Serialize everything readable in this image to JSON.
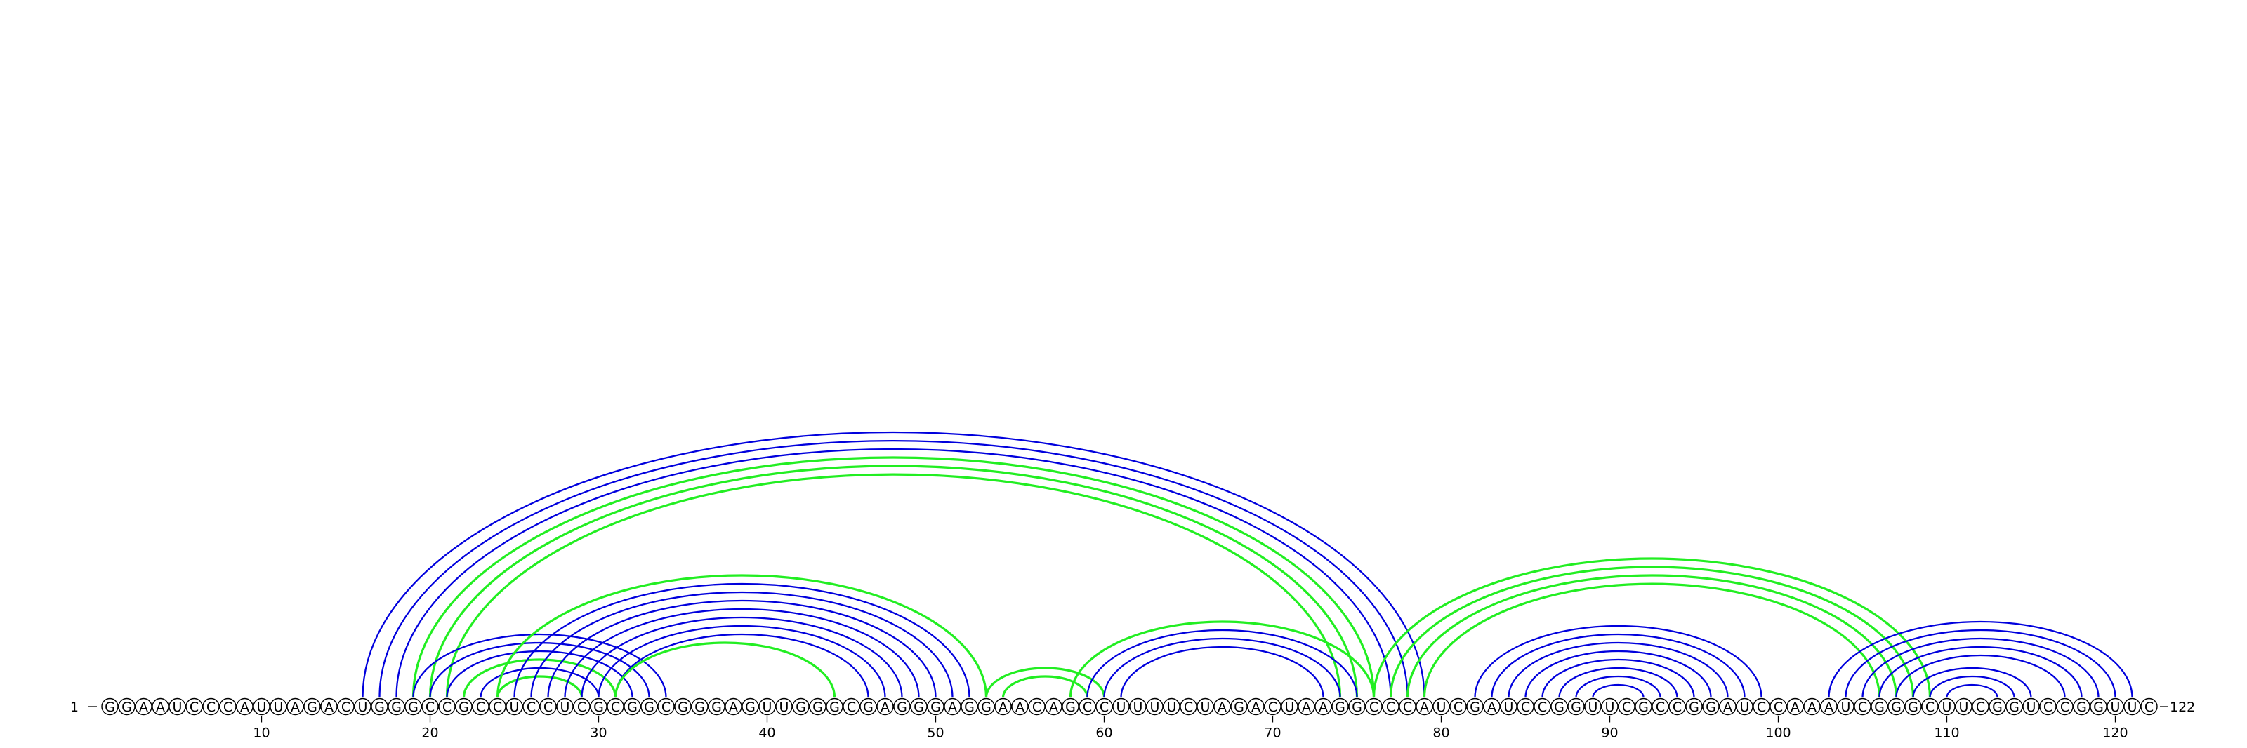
{
  "diagram": {
    "type": "rna-arc-diagram",
    "sequence": "GGAAUCCCAUUAGACUGGGCCGCCUCCUCGCGGCGGGAGUUGGGCGAGGGAGGAACAGCCUUUUCUAGACUAAGGCCCAUCGAUCCGGUUCGCCGGAUCCAAAUCGGGCUUCGGUCCGGUUC",
    "start_label": "1",
    "end_label": "122",
    "tick_positions": [
      10,
      20,
      30,
      40,
      50,
      60,
      70,
      80,
      90,
      100,
      110,
      120
    ],
    "tick_labels": [
      "10",
      "20",
      "30",
      "40",
      "50",
      "60",
      "70",
      "80",
      "90",
      "100",
      "110",
      "120"
    ],
    "colors": {
      "blue": "#0000dd",
      "green": "#22ee22",
      "outline": "#000000"
    },
    "arc_groups": [
      {
        "name": "blue-long-outer",
        "color": "blue",
        "pairs": [
          [
            16,
            79
          ],
          [
            17,
            78
          ],
          [
            18,
            77
          ],
          [
            19,
            76
          ]
        ]
      },
      {
        "name": "green-long",
        "color": "green",
        "pairs": [
          [
            19,
            76
          ],
          [
            20,
            75
          ],
          [
            21,
            74
          ]
        ]
      },
      {
        "name": "blue-left-cross",
        "color": "blue",
        "pairs": [
          [
            19,
            34
          ],
          [
            20,
            33
          ],
          [
            21,
            32
          ],
          [
            22,
            31
          ],
          [
            23,
            30
          ]
        ]
      },
      {
        "name": "green-left-small",
        "color": "green",
        "pairs": [
          [
            22,
            31
          ],
          [
            24,
            29
          ]
        ]
      },
      {
        "name": "blue-mid",
        "color": "blue",
        "pairs": [
          [
            25,
            52
          ],
          [
            26,
            51
          ],
          [
            27,
            50
          ],
          [
            28,
            49
          ],
          [
            29,
            48
          ],
          [
            30,
            47
          ],
          [
            31,
            46
          ]
        ]
      },
      {
        "name": "green-mid",
        "color": "green",
        "pairs": [
          [
            24,
            53
          ],
          [
            31,
            44
          ]
        ]
      },
      {
        "name": "green-small-hairpin",
        "color": "green",
        "pairs": [
          [
            53,
            60
          ],
          [
            54,
            59
          ]
        ]
      },
      {
        "name": "blue-58-75",
        "color": "blue",
        "pairs": [
          [
            59,
            75
          ],
          [
            60,
            74
          ],
          [
            61,
            73
          ]
        ]
      },
      {
        "name": "green-58-76",
        "color": "green",
        "pairs": [
          [
            58,
            76
          ]
        ]
      },
      {
        "name": "green-right-long",
        "color": "green",
        "pairs": [
          [
            76,
            109
          ],
          [
            77,
            108
          ],
          [
            78,
            107
          ],
          [
            79,
            106
          ]
        ]
      },
      {
        "name": "blue-hairpin-90",
        "color": "blue",
        "pairs": [
          [
            82,
            99
          ],
          [
            83,
            98
          ],
          [
            84,
            97
          ],
          [
            85,
            96
          ],
          [
            86,
            95
          ],
          [
            87,
            94
          ],
          [
            88,
            93
          ],
          [
            89,
            92
          ]
        ]
      },
      {
        "name": "blue-right-outer",
        "color": "blue",
        "pairs": [
          [
            103,
            121
          ],
          [
            104,
            120
          ],
          [
            105,
            119
          ],
          [
            106,
            118
          ],
          [
            107,
            117
          ]
        ]
      },
      {
        "name": "blue-hairpin-111",
        "color": "blue",
        "pairs": [
          [
            108,
            115
          ],
          [
            109,
            114
          ],
          [
            110,
            113
          ]
        ]
      }
    ]
  }
}
